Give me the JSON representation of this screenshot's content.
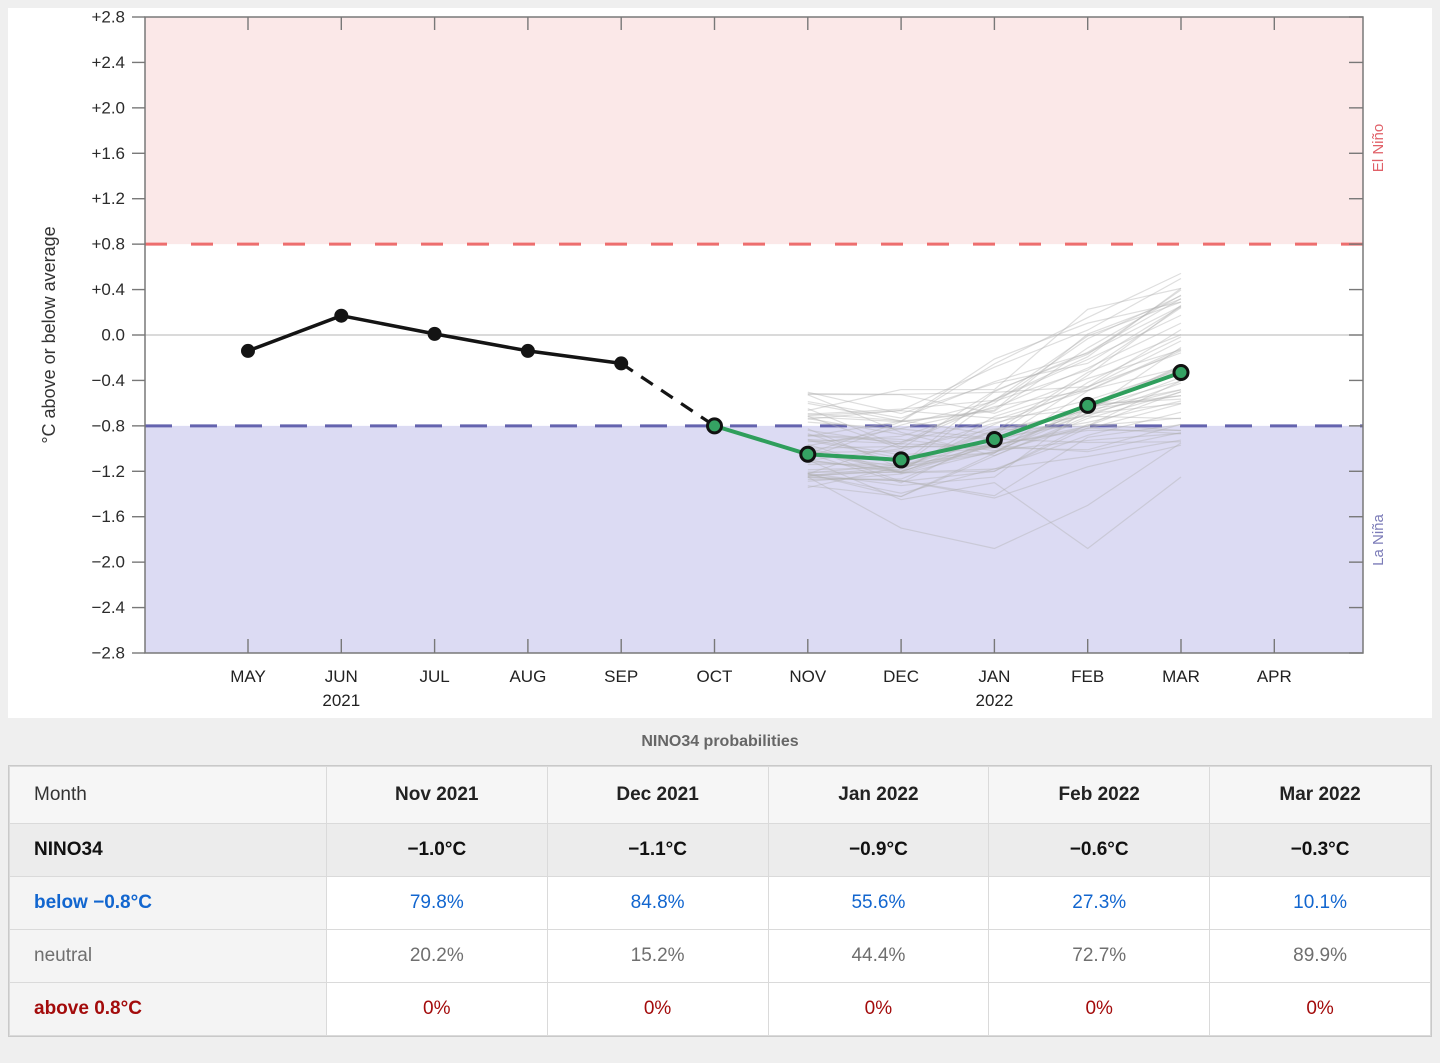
{
  "chart": {
    "ylabel": "°C above or below average",
    "right_labels": {
      "elnino": "El Niño",
      "lanina": "La Niña"
    },
    "colors": {
      "elnino_fill": "#fbe8e8",
      "lanina_fill": "#dcdbf3",
      "elnino_dash": "#ed6e6e",
      "lanina_dash": "#6463ae",
      "elnino_text": "#e06068",
      "lanina_text": "#7c7cb8",
      "observed": "#141414",
      "forecast": "#2f9e5c",
      "forecast_marker": "#35a263",
      "ensemble": "#b0b0b0",
      "zero_line": "#c4c4c4",
      "spine": "#787878",
      "tick_text": "#2b2b2b"
    }
  },
  "chart_data": {
    "type": "line",
    "title": "",
    "xlabel": "",
    "ylabel": "°C above or below average",
    "x_categories": [
      "MAY",
      "JUN",
      "JUL",
      "AUG",
      "SEP",
      "OCT",
      "NOV",
      "DEC",
      "JAN",
      "FEB",
      "MAR",
      "APR"
    ],
    "year_labels": [
      {
        "month_index": 1,
        "text": "2021"
      },
      {
        "month_index": 8,
        "text": "2022"
      }
    ],
    "ylim": [
      -2.8,
      2.8
    ],
    "ytick_step": 0.4,
    "ytick_labels": [
      "+2.8",
      "+2.4",
      "+2.0",
      "+1.6",
      "+1.2",
      "+0.8",
      "+0.4",
      "0.0",
      "−0.4",
      "−0.8",
      "−1.2",
      "−1.6",
      "−2.0",
      "−2.4",
      "−2.8"
    ],
    "grid": "zero-line-only",
    "thresholds": {
      "el_nino": 0.8,
      "la_nina": -0.8
    },
    "series": [
      {
        "name": "observed",
        "style": "solid-markers",
        "month_start_index": 0,
        "months": [
          "MAY",
          "JUN",
          "JUL",
          "AUG",
          "SEP"
        ],
        "values": [
          -0.14,
          0.17,
          0.01,
          -0.14,
          -0.25
        ]
      },
      {
        "name": "observed-to-forecast-link",
        "style": "dashed",
        "month_start_index": 4,
        "months": [
          "SEP",
          "OCT"
        ],
        "values": [
          -0.25,
          -0.8
        ]
      },
      {
        "name": "forecast",
        "style": "solid-markers",
        "month_start_index": 5,
        "months": [
          "OCT",
          "NOV",
          "DEC",
          "JAN",
          "FEB",
          "MAR"
        ],
        "values": [
          -0.8,
          -1.05,
          -1.1,
          -0.92,
          -0.62,
          -0.33
        ]
      }
    ],
    "ensemble": {
      "name": "forecast-members",
      "month_start_index": 6,
      "months": [
        "NOV",
        "DEC",
        "JAN",
        "FEB",
        "MAR"
      ],
      "count": 58,
      "seed": 13,
      "start_offset_range": [
        -0.3,
        0.55
      ],
      "end_offset_range": [
        -0.62,
        0.88
      ],
      "jitter": 0.18,
      "min_value": -1.92,
      "opacity": 0.42,
      "outliers": [
        [
          -1.25,
          -1.7,
          -1.88,
          -1.5,
          -0.95
        ],
        [
          -1.1,
          -1.45,
          -1.3,
          -1.88,
          -1.25
        ]
      ]
    }
  },
  "table": {
    "title": "NINO34 probabilities",
    "columns": [
      "Month",
      "Nov 2021",
      "Dec 2021",
      "Jan 2022",
      "Feb 2022",
      "Mar 2022"
    ],
    "rows": [
      {
        "label": "NINO34",
        "style": "nino34",
        "values": [
          "−1.0°C",
          "−1.1°C",
          "−0.9°C",
          "−0.6°C",
          "−0.3°C"
        ]
      },
      {
        "label": "below −0.8°C",
        "style": "below",
        "values": [
          "79.8%",
          "84.8%",
          "55.6%",
          "27.3%",
          "10.1%"
        ]
      },
      {
        "label": "neutral",
        "style": "neutral",
        "values": [
          "20.2%",
          "15.2%",
          "44.4%",
          "72.7%",
          "89.9%"
        ]
      },
      {
        "label": "above 0.8°C",
        "style": "above",
        "values": [
          "0%",
          "0%",
          "0%",
          "0%",
          "0%"
        ]
      }
    ]
  }
}
